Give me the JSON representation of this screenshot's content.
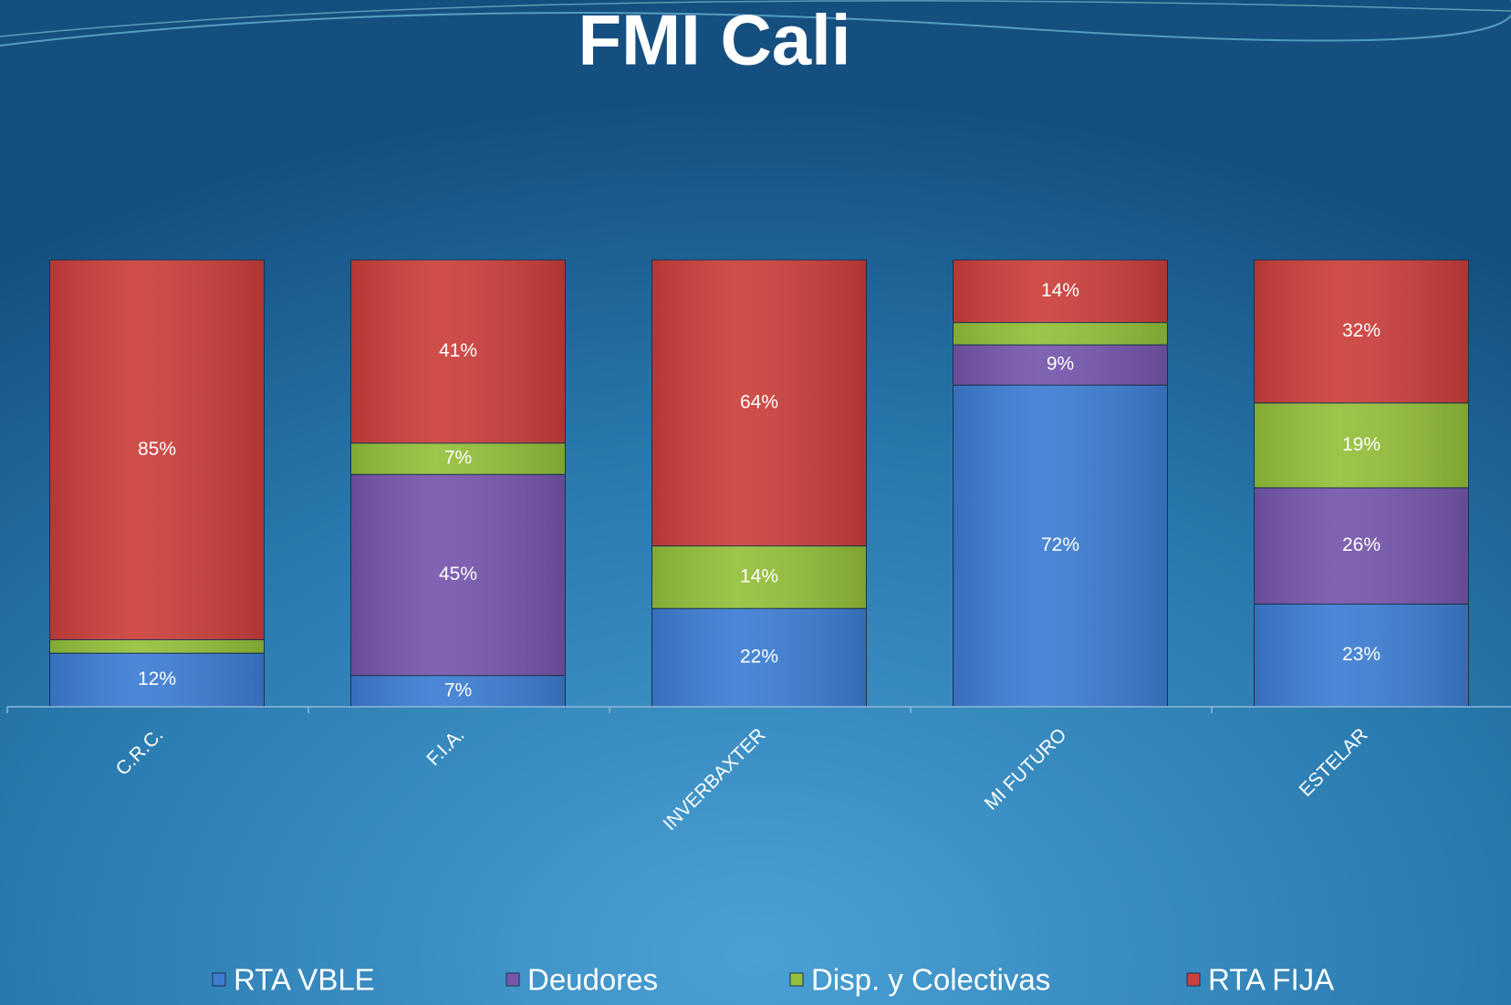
{
  "chart_data": {
    "type": "stacked_bar",
    "title": "FMI Cali",
    "categories": [
      "C.R.C.",
      "F.I.A.",
      "INVERBAXTER",
      "MI FUTURO",
      "ESTELAR"
    ],
    "ylim": [
      0,
      100
    ],
    "legend": "bottom",
    "series": [
      {
        "name": "RTA VBLE",
        "color": "#3d7ed4",
        "values": [
          12,
          7,
          22,
          72,
          23
        ],
        "value_labels": [
          "12%",
          "7%",
          "22%",
          "72%",
          "23%"
        ]
      },
      {
        "name": "Deudores",
        "color": "#7656ad",
        "values": [
          null,
          45,
          null,
          9,
          26
        ],
        "value_labels": [
          null,
          "45%",
          null,
          "9%",
          "26%"
        ]
      },
      {
        "name": "Disp. y Colectivas",
        "color": "#94c03a",
        "values": [
          3,
          7,
          14,
          5,
          19
        ],
        "value_labels": [
          "3%",
          "7%",
          "14%",
          "5%",
          "19%"
        ]
      },
      {
        "name": "RTA FIJA",
        "color": "#cc3f3b",
        "values": [
          85,
          41,
          64,
          14,
          32
        ],
        "value_labels": [
          "85%",
          "41%",
          "64%",
          "14%",
          "32%"
        ]
      }
    ]
  }
}
